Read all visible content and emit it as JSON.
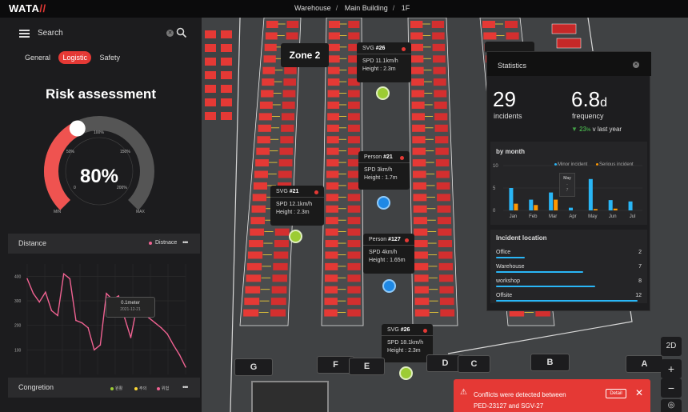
{
  "app": {
    "logo_text": "WATA",
    "logo_mark": "//"
  },
  "breadcrumb": [
    "Warehouse",
    "Main Building",
    "1F"
  ],
  "search": {
    "placeholder": "Search"
  },
  "tabs": [
    {
      "label": "General",
      "active": false
    },
    {
      "label": "Logistic",
      "active": true
    },
    {
      "label": "Safety",
      "active": false
    }
  ],
  "risk": {
    "title": "Risk assessment",
    "value_label": "80%",
    "percent": 80,
    "ticks": [
      "0",
      "50%",
      "100%",
      "150%",
      "200%"
    ],
    "min_label": "MIN",
    "max_label": "MAX"
  },
  "distance": {
    "title": "Distance",
    "legend": "Distnace",
    "more": "•••",
    "chart_data": {
      "type": "line",
      "y_ticks": [
        "400",
        "300",
        "200",
        "100"
      ],
      "ylim": [
        0,
        450
      ],
      "values": [
        390,
        330,
        295,
        335,
        260,
        240,
        410,
        390,
        220,
        210,
        190,
        100,
        120,
        330,
        305,
        320,
        230,
        150,
        275,
        250,
        230,
        210,
        190,
        165,
        120,
        80,
        30
      ],
      "tooltip": {
        "value": "0.1meter",
        "date": "2021-12-21"
      }
    }
  },
  "congestion": {
    "title": "Congretion",
    "more": "•••",
    "legend": [
      {
        "label": "원활",
        "color": "#9ccc34"
      },
      {
        "label": "주의",
        "color": "#fdd835"
      },
      {
        "label": "위험",
        "color": "#f06292"
      }
    ]
  },
  "zones": [
    "Zone 2"
  ],
  "markers": [
    {
      "kind": "SVG",
      "id": "#26",
      "speed": "SPD 11.1km/h",
      "height": "Height : 2.3m"
    },
    {
      "kind": "Person",
      "id": "#21",
      "speed": "SPD 3km/h",
      "height": "Height : 1.7m"
    },
    {
      "kind": "SVG",
      "id": "#21",
      "speed": "SPD 12.1km/h",
      "height": "Height : 2.3m"
    },
    {
      "kind": "Person",
      "id": "#127",
      "speed": "SPD 4km/h",
      "height": "Height : 1.65m"
    },
    {
      "kind": "SVG",
      "id": "#26",
      "speed": "SPD 18.1km/h",
      "height": "Height : 2.3m"
    }
  ],
  "aisles": [
    "G",
    "F",
    "E",
    "D",
    "C",
    "B",
    "A"
  ],
  "stats": {
    "title": "Statistics",
    "incidents": {
      "value": "29",
      "label": "incidents"
    },
    "frequency": {
      "value": "6.8",
      "unit": "d",
      "label": "frequency"
    },
    "trend": {
      "arrow": "▼",
      "value": "23",
      "unit": "%",
      "text": "v last year"
    },
    "by_month": {
      "title": "by month",
      "legend": [
        {
          "label": "Minor incident",
          "color": "#29b6f6"
        },
        {
          "label": "Serious incident",
          "color": "#ff9800"
        }
      ],
      "tooltip": {
        "title": "May",
        "line1": "-",
        "line2": "7"
      },
      "chart_data": {
        "type": "bar",
        "categories": [
          "Jan",
          "Feb",
          "Mar",
          "Apr",
          "May",
          "Jun",
          "Jul"
        ],
        "y_ticks": [
          "10",
          "5",
          "0"
        ],
        "ylim": [
          0,
          10
        ],
        "series": [
          {
            "name": "Minor incident",
            "values": [
              5,
              2.4,
              4,
              0.6,
              7,
              2.3,
              2
            ]
          },
          {
            "name": "Serious incident",
            "values": [
              1.5,
              1.2,
              2.4,
              0,
              0.3,
              0.4,
              0
            ]
          }
        ]
      }
    },
    "location": {
      "title": "Incident location",
      "rows": [
        {
          "label": "Office",
          "value": "2",
          "fraction": 0.2
        },
        {
          "label": "Warehouse",
          "value": "7",
          "fraction": 0.6
        },
        {
          "label": "workshop",
          "value": "8",
          "fraction": 0.68
        },
        {
          "label": "Offsite",
          "value": "12",
          "fraction": 0.97
        }
      ]
    }
  },
  "controls": {
    "mode": "2D",
    "zoom_in": "+",
    "zoom_out": "−"
  },
  "alert": {
    "line1": "Conflicts were detected between",
    "line2": "PED-23127 and SGV-27",
    "detail": "Detail",
    "close": "✕",
    "icon": "warning-icon"
  }
}
